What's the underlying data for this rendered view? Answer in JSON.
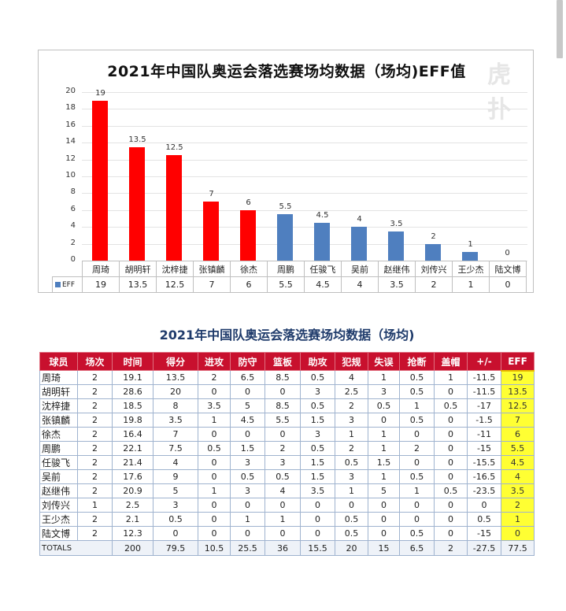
{
  "chart_data": {
    "type": "bar",
    "title": "2021年中国队奥运会落选赛场均数据（场均)EFF值",
    "xlabel": "",
    "ylabel": "",
    "ylim": [
      0,
      20
    ],
    "yticks": [
      0,
      2,
      4,
      6,
      8,
      10,
      12,
      14,
      16,
      18,
      20
    ],
    "grid": true,
    "legend": {
      "position": "bottom-data-table",
      "entries": [
        "EFF"
      ]
    },
    "categories": [
      "周琦",
      "胡明轩",
      "沈梓捷",
      "张镇麟",
      "徐杰",
      "周鹏",
      "任骏飞",
      "吴前",
      "赵继伟",
      "刘传兴",
      "王少杰",
      "陆文博"
    ],
    "series": [
      {
        "name": "EFF",
        "values": [
          19,
          13.5,
          12.5,
          7,
          6,
          5.5,
          4.5,
          4,
          3.5,
          2,
          1,
          0
        ]
      }
    ],
    "value_labels": [
      "19",
      "13.5",
      "12.5",
      "7",
      "6",
      "5.5",
      "4.5",
      "4",
      "3.5",
      "2",
      "1",
      "0"
    ],
    "bar_colors": [
      "#ff0000",
      "#ff0000",
      "#ff0000",
      "#ff0000",
      "#ff0000",
      "#4f7fbf",
      "#4f7fbf",
      "#4f7fbf",
      "#4f7fbf",
      "#4f7fbf",
      "#4f7fbf",
      "#4f7fbf"
    ],
    "data_table": true,
    "legend_label": "EFF"
  },
  "watermark": "虎扑",
  "colors": {
    "highlight_bar": "#ff0000",
    "default_bar": "#4f7fbf",
    "table_header": "#c8102e",
    "eff_highlight": "#ffff33",
    "table_title": "#1f3b6b"
  },
  "table": {
    "title": "2021年中国队奥运会落选赛场均数据（场均)",
    "headers": [
      "球员",
      "场次",
      "时间",
      "得分",
      "进攻",
      "防守",
      "篮板",
      "助攻",
      "犯规",
      "失误",
      "抢断",
      "盖帽",
      "+/-",
      "EFF"
    ],
    "rows": [
      [
        "周琦",
        "2",
        "19.1",
        "13.5",
        "2",
        "6.5",
        "8.5",
        "0.5",
        "4",
        "1",
        "0.5",
        "1",
        "-11.5",
        "19"
      ],
      [
        "胡明轩",
        "2",
        "28.6",
        "20",
        "0",
        "0",
        "0",
        "3",
        "2.5",
        "3",
        "0.5",
        "0",
        "-11.5",
        "13.5"
      ],
      [
        "沈梓捷",
        "2",
        "18.5",
        "8",
        "3.5",
        "5",
        "8.5",
        "0.5",
        "2",
        "0.5",
        "1",
        "0.5",
        "-17",
        "12.5"
      ],
      [
        "张镇麟",
        "2",
        "19.8",
        "3.5",
        "1",
        "4.5",
        "5.5",
        "1.5",
        "3",
        "0",
        "0.5",
        "0",
        "-1.5",
        "7"
      ],
      [
        "徐杰",
        "2",
        "16.4",
        "7",
        "0",
        "0",
        "0",
        "3",
        "1",
        "1",
        "0",
        "0",
        "-11",
        "6"
      ],
      [
        "周鹏",
        "2",
        "22.1",
        "7.5",
        "0.5",
        "1.5",
        "2",
        "0.5",
        "2",
        "1",
        "2",
        "0",
        "-15",
        "5.5"
      ],
      [
        "任骏飞",
        "2",
        "21.4",
        "4",
        "0",
        "3",
        "3",
        "1.5",
        "0.5",
        "1.5",
        "0",
        "0",
        "-15.5",
        "4.5"
      ],
      [
        "吴前",
        "2",
        "17.6",
        "9",
        "0",
        "0.5",
        "0.5",
        "1.5",
        "3",
        "1",
        "0.5",
        "0",
        "-16.5",
        "4"
      ],
      [
        "赵继伟",
        "2",
        "20.9",
        "5",
        "1",
        "3",
        "4",
        "3.5",
        "1",
        "5",
        "1",
        "0.5",
        "-23.5",
        "3.5"
      ],
      [
        "刘传兴",
        "1",
        "2.5",
        "3",
        "0",
        "0",
        "0",
        "0",
        "0",
        "0",
        "0",
        "0",
        "0",
        "2"
      ],
      [
        "王少杰",
        "2",
        "2.1",
        "0.5",
        "0",
        "1",
        "1",
        "0",
        "0.5",
        "0",
        "0",
        "0",
        "0.5",
        "1"
      ],
      [
        "陆文博",
        "2",
        "12.3",
        "0",
        "0",
        "0",
        "0",
        "0",
        "0.5",
        "0",
        "0.5",
        "0",
        "-15",
        "0"
      ]
    ],
    "totals": {
      "label": "TOTALS",
      "values": [
        "200",
        "79.5",
        "10.5",
        "25.5",
        "36",
        "15.5",
        "20",
        "15",
        "6.5",
        "2",
        "-27.5",
        "77.5"
      ]
    }
  }
}
